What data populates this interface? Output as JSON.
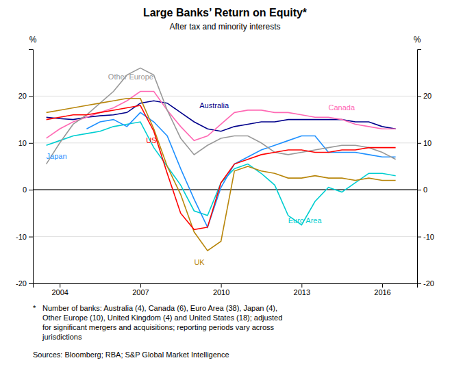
{
  "chart_data": {
    "type": "line",
    "title": "Large Banks’ Return on Equity*",
    "subtitle": "After tax and minority interests",
    "y_label": "%",
    "y2_label": "%",
    "x": [
      2003.5,
      2004.0,
      2004.5,
      2005.0,
      2005.5,
      2006.0,
      2006.5,
      2007.0,
      2007.5,
      2008.0,
      2008.5,
      2009.0,
      2009.5,
      2010.0,
      2010.5,
      2011.0,
      2011.5,
      2012.0,
      2012.5,
      2013.0,
      2013.5,
      2014.0,
      2014.5,
      2015.0,
      2015.5,
      2016.0,
      2016.5
    ],
    "xlim": [
      2003.0,
      2017.3
    ],
    "xticks": [
      2004,
      2007,
      2010,
      2013,
      2016
    ],
    "ylim": [
      -20,
      30
    ],
    "yticks": [
      -20,
      -10,
      0,
      10,
      20
    ],
    "y2lim": [
      -20,
      30
    ],
    "y2ticks": [
      -20,
      -10,
      0,
      10,
      20
    ],
    "grid": true,
    "series": [
      {
        "name": "Australia",
        "color": "#00008B",
        "values": [
          15.5,
          15.2,
          15.0,
          15.5,
          15.8,
          16.0,
          16.5,
          18.5,
          19.0,
          18.5,
          16.5,
          14.5,
          13.0,
          12.5,
          13.5,
          14.0,
          14.5,
          14.5,
          15.0,
          15.0,
          15.0,
          15.0,
          15.0,
          14.5,
          14.5,
          13.5,
          13.0
        ]
      },
      {
        "name": "Canada",
        "color": "#FF69B4",
        "values": [
          11.0,
          13.0,
          14.5,
          15.5,
          16.5,
          17.5,
          19.0,
          21.0,
          21.0,
          17.0,
          13.5,
          10.5,
          11.5,
          14.0,
          16.5,
          17.0,
          17.0,
          16.5,
          16.5,
          16.0,
          15.5,
          15.5,
          15.0,
          14.0,
          13.5,
          13.0,
          13.0
        ]
      },
      {
        "name": "Euro Area",
        "color": "#00CED1",
        "values": [
          9.5,
          10.5,
          11.5,
          12.0,
          12.5,
          13.5,
          14.0,
          14.5,
          9.0,
          5.0,
          1.0,
          -4.5,
          -5.5,
          1.5,
          4.5,
          5.5,
          3.5,
          1.0,
          -5.5,
          -7.5,
          -2.5,
          0.5,
          -0.5,
          1.5,
          3.5,
          3.5,
          3.0
        ]
      },
      {
        "name": "Japan",
        "color": "#1E90FF",
        "values": [
          null,
          null,
          null,
          13.0,
          14.5,
          15.0,
          13.5,
          16.5,
          14.5,
          11.5,
          4.5,
          -2.0,
          -8.0,
          0.5,
          5.5,
          7.0,
          8.5,
          9.5,
          10.5,
          11.5,
          11.5,
          8.0,
          8.0,
          8.0,
          7.5,
          7.0,
          7.0
        ]
      },
      {
        "name": "Other Europe",
        "color": "#999999",
        "values": [
          5.5,
          10.0,
          14.0,
          16.0,
          18.5,
          21.0,
          24.5,
          26.0,
          24.5,
          17.0,
          11.0,
          7.5,
          9.5,
          11.0,
          11.5,
          11.5,
          10.0,
          8.0,
          7.5,
          8.0,
          8.5,
          9.0,
          9.5,
          9.5,
          9.0,
          8.0,
          6.5
        ]
      },
      {
        "name": "UK",
        "color": "#B8860B",
        "values": [
          16.5,
          17.0,
          17.5,
          18.0,
          18.5,
          19.0,
          19.5,
          19.5,
          13.0,
          5.0,
          -1.0,
          -9.0,
          -13.0,
          -11.0,
          4.0,
          5.0,
          4.0,
          3.5,
          2.5,
          2.5,
          3.0,
          2.5,
          2.5,
          2.0,
          2.5,
          2.0,
          2.0
        ]
      },
      {
        "name": "US",
        "color": "#FF0000",
        "values": [
          15.0,
          15.5,
          16.0,
          16.0,
          16.5,
          17.0,
          17.5,
          18.0,
          12.5,
          3.5,
          -5.0,
          -8.5,
          -8.0,
          1.5,
          5.5,
          6.5,
          7.5,
          8.0,
          8.5,
          8.5,
          8.0,
          8.0,
          8.5,
          8.5,
          9.0,
          9.0,
          9.0
        ]
      }
    ],
    "annotations": [
      {
        "text": "Other Europe",
        "x": 2005.8,
        "y": 24.2,
        "align": "left",
        "color": "#999999"
      },
      {
        "text": "Australia",
        "x": 2009.2,
        "y": 18.0,
        "align": "left",
        "color": "#00008B"
      },
      {
        "text": "Canada",
        "x": 2014.0,
        "y": 17.5,
        "align": "left",
        "color": "#FF69B4"
      },
      {
        "text": "Euro Area",
        "x": 2012.5,
        "y": -6.5,
        "align": "left",
        "color": "#00CED1"
      },
      {
        "text": "Japan",
        "x": 2003.5,
        "y": 7.2,
        "align": "left",
        "color": "#1E90FF"
      },
      {
        "text": "UK",
        "x": 2009.0,
        "y": -15.5,
        "align": "left",
        "color": "#B8860B"
      },
      {
        "text": "US",
        "x": 2007.6,
        "y": 10.5,
        "align": "right",
        "color": "#FF0000"
      }
    ],
    "footnote_marker": "*",
    "footnote": "Number of banks: Australia (4), Canada (6), Euro Area (38), Japan (4),\nOther Europe (10), United Kingdom (4) and United States (18); adjusted\nfor significant mergers and acquisitions; reporting periods vary across\njurisdictions",
    "sources": "Sources:  Bloomberg; RBA; S&P Global Market Intelligence"
  }
}
